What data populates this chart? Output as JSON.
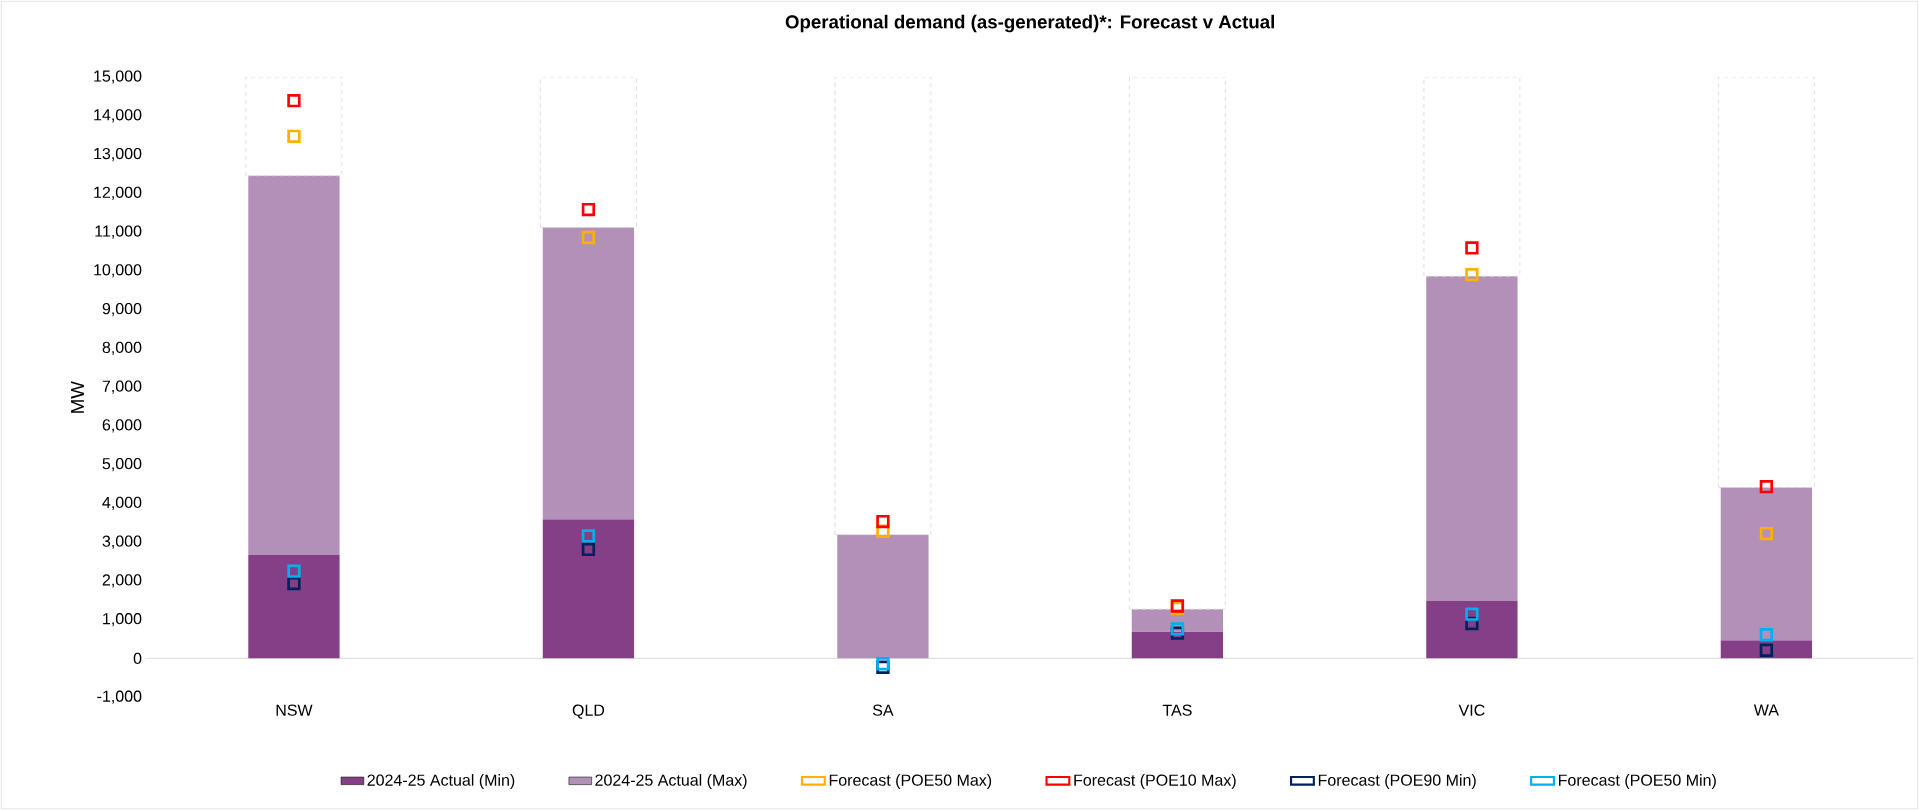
{
  "chart_data": {
    "type": "bar",
    "title": "Operational demand (as-generated)*: Forecast v Actual",
    "ylabel": "MW",
    "categories": [
      "NSW",
      "QLD",
      "SA",
      "TAS",
      "VIC",
      "WA"
    ],
    "stacked": true,
    "legend": "bottom",
    "marker": "square",
    "ylim": [
      -1000,
      15000
    ],
    "yticks": [
      {
        "value": -1000,
        "label": "-1,000"
      },
      0,
      {
        "value": 1000,
        "label": "1,000"
      },
      {
        "value": 2000,
        "label": "2,000"
      },
      {
        "value": 3000,
        "label": "3,000"
      },
      {
        "value": 4000,
        "label": "4,000"
      },
      {
        "value": 5000,
        "label": "5,000"
      },
      {
        "value": 6000,
        "label": "6,000"
      },
      {
        "value": 7000,
        "label": "7,000"
      },
      {
        "value": 8000,
        "label": "8,000"
      },
      {
        "value": 9000,
        "label": "9,000"
      },
      {
        "value": 10000,
        "label": "10,000"
      },
      {
        "value": 11000,
        "label": "11,000"
      },
      {
        "value": 12000,
        "label": "12,000"
      },
      {
        "value": 13000,
        "label": "13,000"
      },
      {
        "value": 14000,
        "label": "14,000"
      },
      {
        "value": 15000,
        "label": "15,000"
      }
    ],
    "series": [
      {
        "name": "2024-25 Actual (Min)",
        "color": "#843f87",
        "values": [
          2670,
          3590,
          null,
          690,
          1480,
          470
        ]
      },
      {
        "name": "2024-25 Actual (Max)",
        "color": "#b290b8",
        "values": [
          9780,
          7530,
          3190,
          580,
          8380,
          3940
        ]
      },
      {
        "color": "#d9d9d9",
        "line_style": "dashed",
        "values": [
          2550,
          3880,
          11810,
          13730,
          5140,
          10590
        ]
      },
      {
        "name": "Forecast (POE50 Max)",
        "color": "#ffb000",
        "type": "scatter",
        "x": [
          "NSW",
          "QLD",
          "SA",
          "TAS",
          "VIC",
          "WA"
        ],
        "values": [
          13470,
          10860,
          3280,
          1290,
          9900,
          3220
        ]
      },
      {
        "name": "Forecast (POE10 Max)",
        "color": "#ff0000",
        "type": "scatter",
        "x": [
          "NSW",
          "QLD",
          "SA",
          "TAS",
          "VIC",
          "WA"
        ],
        "values": [
          14390,
          11580,
          3530,
          1350,
          10590,
          4430
        ]
      },
      {
        "name": "Forecast (POE90 Min)",
        "color": "#002060",
        "type": "scatter",
        "x": [
          "NSW",
          "QLD",
          "SA",
          "TAS",
          "VIC",
          "WA"
        ],
        "values": [
          1930,
          2810,
          -230,
          650,
          900,
          210
        ]
      },
      {
        "name": "Forecast (POE50 Min)",
        "color": "#00b0f0",
        "type": "scatter",
        "x": [
          "NSW",
          "QLD",
          "SA",
          "TAS",
          "VIC",
          "WA"
        ],
        "values": [
          2250,
          3160,
          -140,
          760,
          1140,
          610
        ]
      }
    ]
  }
}
